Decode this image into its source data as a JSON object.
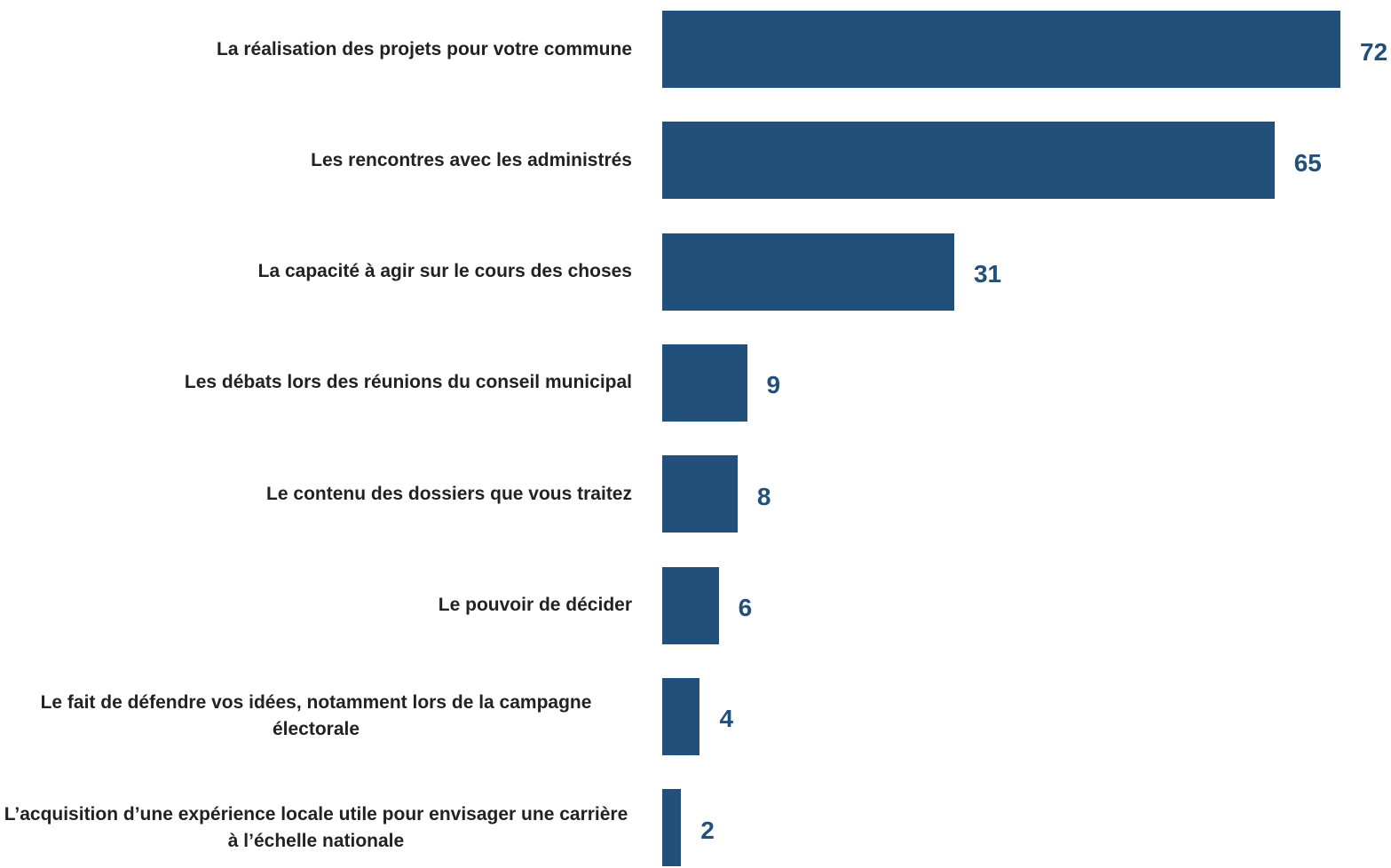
{
  "chart_data": {
    "type": "bar",
    "orientation": "horizontal",
    "color": "#22507a",
    "categories": [
      "La réalisation des projets pour votre commune",
      "Les rencontres avec les administrés",
      "La capacité à agir sur le cours des choses",
      "Les débats lors des réunions du conseil municipal",
      "Le contenu des dossiers que vous traitez",
      "Le pouvoir de décider",
      "Le fait de défendre vos idées, notamment lors de la campagne électorale",
      "L’acquisition d’une expérience locale utile pour envisager une carrière à l’échelle nationale"
    ],
    "values": [
      72,
      65,
      31,
      9,
      8,
      6,
      4,
      2
    ]
  }
}
